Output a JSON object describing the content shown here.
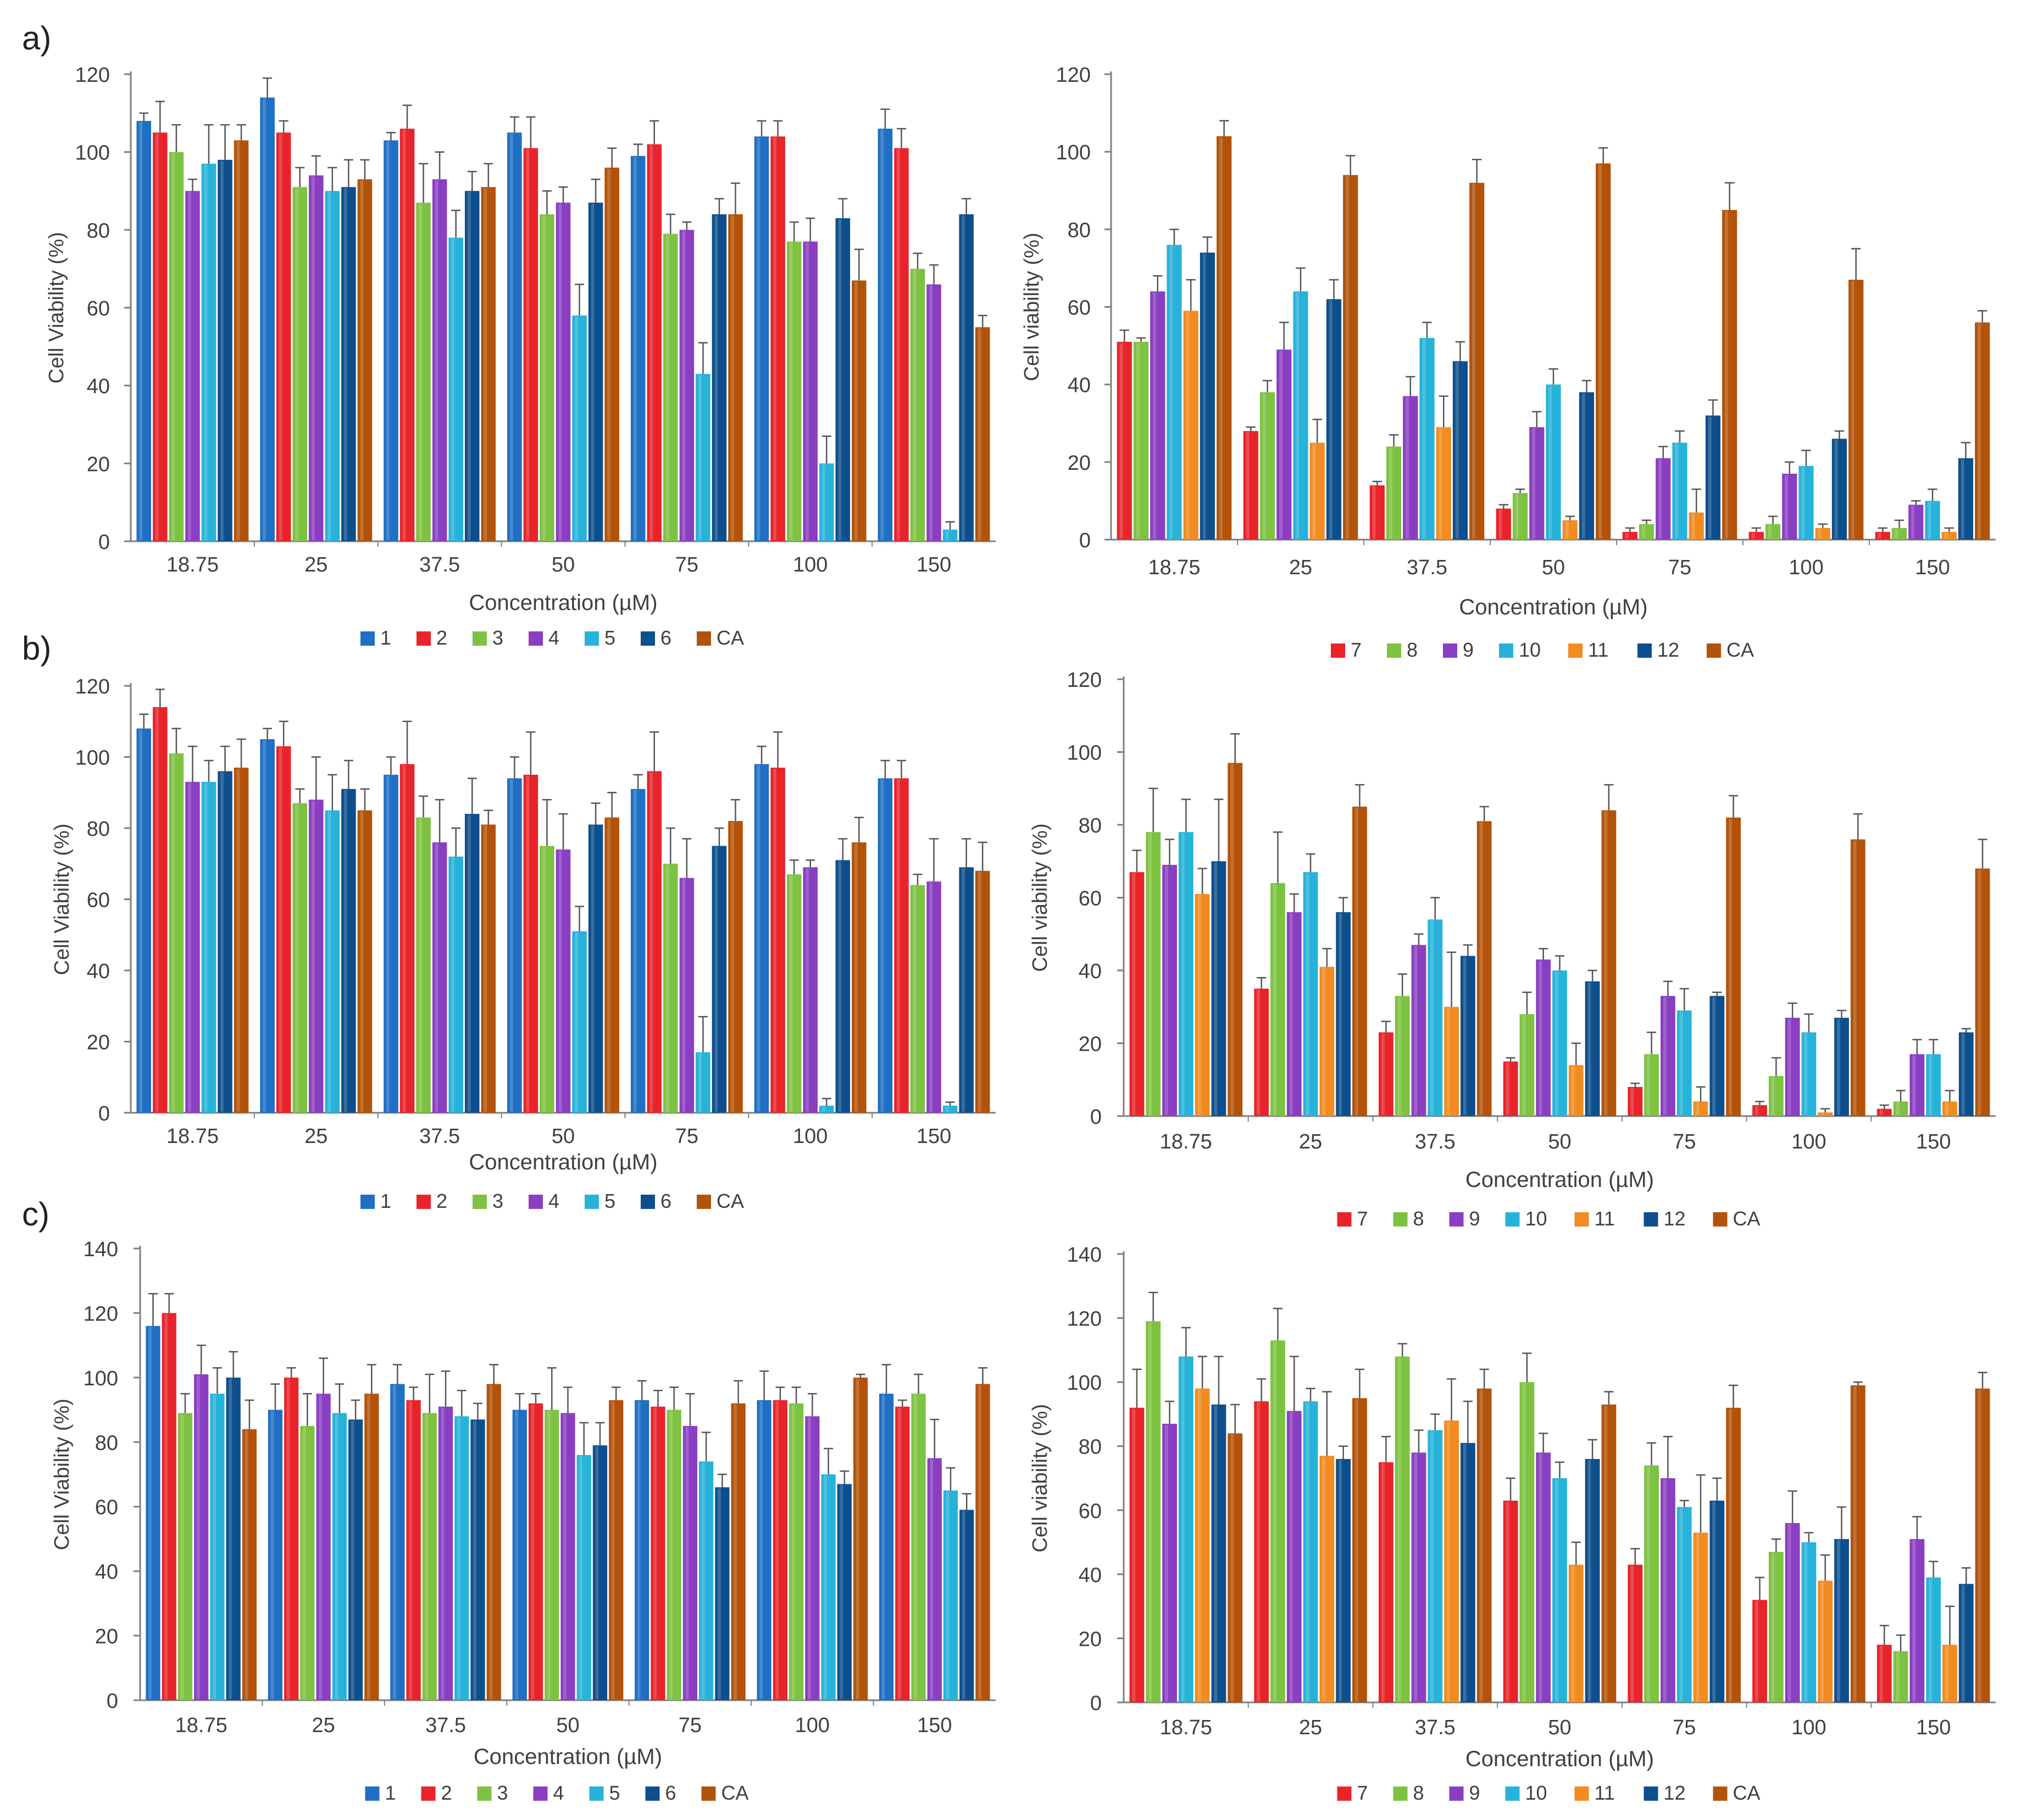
{
  "panel_labels": [
    "a)",
    "b)",
    "c)"
  ],
  "colors": {
    "1": "#1f6fc4",
    "2": "#e8242a",
    "3": "#7ec242",
    "4": "#8a3fc2",
    "5": "#27b3d9",
    "6": "#0d4f8c",
    "7": "#e8242a",
    "8": "#7ec242",
    "9": "#8a3fc2",
    "10": "#27b3d9",
    "11": "#f28b20",
    "12": "#0d4f8c",
    "CA": "#b35309",
    "axis": "#7f7f7f",
    "text": "#404040",
    "error": "#555555"
  },
  "chart_data": [
    {
      "type": "bar",
      "panel": "a)",
      "xlabel": "Concentration (µM)",
      "ylabel": "Cell Viability (%)",
      "ylim": [
        0,
        120
      ],
      "yticks": [
        0,
        20,
        40,
        60,
        80,
        100,
        120
      ],
      "categories": [
        "18.75",
        "25",
        "37.5",
        "50",
        "75",
        "100",
        "150"
      ],
      "series": [
        {
          "name": "1",
          "values": [
            108,
            114,
            103,
            105,
            99,
            104,
            106
          ],
          "errors": [
            2,
            5,
            2,
            4,
            3,
            4,
            5
          ]
        },
        {
          "name": "2",
          "values": [
            105,
            105,
            106,
            101,
            102,
            104,
            101
          ],
          "errors": [
            8,
            3,
            6,
            8,
            6,
            4,
            5
          ]
        },
        {
          "name": "3",
          "values": [
            100,
            91,
            87,
            84,
            79,
            77,
            70
          ],
          "errors": [
            7,
            5,
            10,
            6,
            5,
            5,
            4
          ]
        },
        {
          "name": "4",
          "values": [
            90,
            94,
            93,
            87,
            80,
            77,
            66
          ],
          "errors": [
            3,
            5,
            7,
            4,
            2,
            6,
            5
          ]
        },
        {
          "name": "5",
          "values": [
            97,
            90,
            78,
            58,
            43,
            20,
            3
          ],
          "errors": [
            10,
            6,
            7,
            8,
            8,
            7,
            2
          ]
        },
        {
          "name": "6",
          "values": [
            98,
            91,
            90,
            87,
            84,
            83,
            84
          ],
          "errors": [
            9,
            7,
            5,
            6,
            4,
            5,
            4
          ]
        },
        {
          "name": "CA",
          "values": [
            103,
            93,
            91,
            96,
            84,
            67,
            55
          ],
          "errors": [
            4,
            5,
            6,
            5,
            8,
            8,
            3
          ]
        }
      ]
    },
    {
      "type": "bar",
      "panel": "a)",
      "xlabel": "Concentration (µM)",
      "ylabel": "Cell viability (%)",
      "ylim": [
        0,
        120
      ],
      "yticks": [
        0,
        20,
        40,
        60,
        80,
        100,
        120
      ],
      "categories": [
        "18.75",
        "25",
        "37.5",
        "50",
        "75",
        "100",
        "150"
      ],
      "series": [
        {
          "name": "7",
          "values": [
            51,
            28,
            14,
            8,
            2,
            2,
            2
          ],
          "errors": [
            3,
            1,
            1,
            1,
            1,
            1,
            1
          ]
        },
        {
          "name": "8",
          "values": [
            51,
            38,
            24,
            12,
            4,
            4,
            3
          ],
          "errors": [
            1,
            3,
            3,
            1,
            1,
            2,
            2
          ]
        },
        {
          "name": "9",
          "values": [
            64,
            49,
            37,
            29,
            21,
            17,
            9
          ],
          "errors": [
            4,
            7,
            5,
            4,
            3,
            3,
            1
          ]
        },
        {
          "name": "10",
          "values": [
            76,
            64,
            52,
            40,
            25,
            19,
            10
          ],
          "errors": [
            4,
            6,
            4,
            4,
            3,
            4,
            3
          ]
        },
        {
          "name": "11",
          "values": [
            59,
            25,
            29,
            5,
            7,
            3,
            2
          ],
          "errors": [
            8,
            6,
            8,
            1,
            6,
            1,
            1
          ]
        },
        {
          "name": "12",
          "values": [
            74,
            62,
            46,
            38,
            32,
            26,
            21
          ],
          "errors": [
            4,
            5,
            5,
            3,
            4,
            2,
            4
          ]
        },
        {
          "name": "CA",
          "values": [
            104,
            94,
            92,
            97,
            85,
            67,
            56
          ],
          "errors": [
            4,
            5,
            6,
            4,
            7,
            8,
            3
          ]
        }
      ]
    },
    {
      "type": "bar",
      "panel": "b)",
      "xlabel": "Concentration (µM)",
      "ylabel": "Cell Viability (%)",
      "ylim": [
        0,
        120
      ],
      "yticks": [
        0,
        20,
        40,
        60,
        80,
        100,
        120
      ],
      "categories": [
        "18.75",
        "25",
        "37.5",
        "50",
        "75",
        "100",
        "150"
      ],
      "series": [
        {
          "name": "1",
          "values": [
            108,
            105,
            95,
            94,
            91,
            98,
            94
          ],
          "errors": [
            4,
            3,
            5,
            6,
            4,
            5,
            5
          ]
        },
        {
          "name": "2",
          "values": [
            114,
            103,
            98,
            95,
            96,
            97,
            94
          ],
          "errors": [
            5,
            7,
            12,
            12,
            11,
            10,
            5
          ]
        },
        {
          "name": "3",
          "values": [
            101,
            87,
            83,
            75,
            70,
            67,
            64
          ],
          "errors": [
            7,
            4,
            6,
            13,
            10,
            4,
            3
          ]
        },
        {
          "name": "4",
          "values": [
            93,
            88,
            76,
            74,
            66,
            69,
            65
          ],
          "errors": [
            10,
            12,
            12,
            10,
            11,
            2,
            12
          ]
        },
        {
          "name": "5",
          "values": [
            93,
            85,
            72,
            51,
            17,
            2,
            2
          ],
          "errors": [
            6,
            10,
            8,
            7,
            10,
            2,
            1
          ]
        },
        {
          "name": "6",
          "values": [
            96,
            91,
            84,
            81,
            75,
            71,
            69
          ],
          "errors": [
            7,
            8,
            10,
            6,
            5,
            6,
            8
          ]
        },
        {
          "name": "CA",
          "values": [
            97,
            85,
            81,
            83,
            82,
            76,
            68
          ],
          "errors": [
            8,
            6,
            4,
            7,
            6,
            7,
            8
          ]
        }
      ]
    },
    {
      "type": "bar",
      "panel": "b)",
      "xlabel": "Concentration (µM)",
      "ylabel": "Cell viability (%)",
      "ylim": [
        0,
        120
      ],
      "yticks": [
        0,
        20,
        40,
        60,
        80,
        100,
        120
      ],
      "categories": [
        "18.75",
        "25",
        "37.5",
        "50",
        "75",
        "100",
        "150"
      ],
      "series": [
        {
          "name": "7",
          "values": [
            67,
            35,
            23,
            15,
            8,
            3,
            2
          ],
          "errors": [
            6,
            3,
            3,
            1,
            1,
            1,
            1
          ]
        },
        {
          "name": "8",
          "values": [
            78,
            64,
            33,
            28,
            17,
            11,
            4
          ],
          "errors": [
            12,
            14,
            6,
            6,
            6,
            5,
            3
          ]
        },
        {
          "name": "9",
          "values": [
            69,
            56,
            47,
            43,
            33,
            27,
            17
          ],
          "errors": [
            7,
            5,
            3,
            3,
            4,
            4,
            4
          ]
        },
        {
          "name": "10",
          "values": [
            78,
            67,
            54,
            40,
            29,
            23,
            17
          ],
          "errors": [
            9,
            5,
            6,
            4,
            6,
            5,
            4
          ]
        },
        {
          "name": "11",
          "values": [
            61,
            41,
            30,
            14,
            4,
            1,
            4
          ],
          "errors": [
            7,
            5,
            15,
            6,
            4,
            1,
            3
          ]
        },
        {
          "name": "12",
          "values": [
            70,
            56,
            44,
            37,
            33,
            27,
            23
          ],
          "errors": [
            17,
            4,
            3,
            3,
            1,
            2,
            1
          ]
        },
        {
          "name": "CA",
          "values": [
            97,
            85,
            81,
            84,
            82,
            76,
            68
          ],
          "errors": [
            8,
            6,
            4,
            7,
            6,
            7,
            8
          ]
        }
      ]
    },
    {
      "type": "bar",
      "panel": "c)",
      "xlabel": "Concentration (µM)",
      "ylabel": "Cell Viability (%)",
      "ylim": [
        0,
        140
      ],
      "yticks": [
        0,
        20,
        40,
        60,
        80,
        100,
        120,
        140
      ],
      "categories": [
        "18.75",
        "25",
        "37.5",
        "50",
        "75",
        "100",
        "150"
      ],
      "series": [
        {
          "name": "1",
          "values": [
            116,
            90,
            98,
            90,
            93,
            93,
            95
          ],
          "errors": [
            10,
            8,
            6,
            5,
            6,
            9,
            9
          ]
        },
        {
          "name": "2",
          "values": [
            120,
            100,
            93,
            92,
            91,
            93,
            91
          ],
          "errors": [
            6,
            3,
            4,
            3,
            5,
            4,
            2
          ]
        },
        {
          "name": "3",
          "values": [
            89,
            85,
            89,
            90,
            90,
            92,
            95
          ],
          "errors": [
            6,
            10,
            12,
            13,
            7,
            5,
            6
          ]
        },
        {
          "name": "4",
          "values": [
            101,
            95,
            91,
            89,
            85,
            88,
            75
          ],
          "errors": [
            9,
            11,
            11,
            8,
            10,
            7,
            12
          ]
        },
        {
          "name": "5",
          "values": [
            95,
            89,
            88,
            76,
            74,
            70,
            65
          ],
          "errors": [
            8,
            9,
            8,
            10,
            9,
            8,
            7
          ]
        },
        {
          "name": "6",
          "values": [
            100,
            87,
            87,
            79,
            66,
            67,
            59
          ],
          "errors": [
            8,
            6,
            5,
            7,
            4,
            4,
            5
          ]
        },
        {
          "name": "CA",
          "values": [
            84,
            95,
            98,
            93,
            92,
            100,
            98
          ],
          "errors": [
            9,
            9,
            6,
            4,
            7,
            1,
            5
          ]
        }
      ]
    },
    {
      "type": "bar",
      "panel": "c)",
      "xlabel": "Concentration (µM)",
      "ylabel": "Cell viability (%)",
      "ylim": [
        0,
        140
      ],
      "yticks": [
        0,
        20,
        40,
        60,
        80,
        100,
        120,
        140
      ],
      "categories": [
        "18.75",
        "25",
        "37.5",
        "50",
        "75",
        "100",
        "150"
      ],
      "series": [
        {
          "name": "7",
          "values": [
            92,
            94,
            75,
            63,
            43,
            32,
            18
          ],
          "errors": [
            12,
            7,
            8,
            7,
            5,
            7,
            6
          ]
        },
        {
          "name": "8",
          "values": [
            119,
            113,
            108,
            100,
            74,
            47,
            16
          ],
          "errors": [
            9,
            10,
            4,
            9,
            7,
            4,
            5
          ]
        },
        {
          "name": "9",
          "values": [
            87,
            91,
            78,
            78,
            70,
            56,
            51
          ],
          "errors": [
            7,
            17,
            7,
            6,
            13,
            10,
            7
          ]
        },
        {
          "name": "10",
          "values": [
            108,
            94,
            85,
            70,
            61,
            50,
            39
          ],
          "errors": [
            9,
            4,
            5,
            5,
            2,
            3,
            5
          ]
        },
        {
          "name": "11",
          "values": [
            98,
            77,
            88,
            43,
            53,
            38,
            18
          ],
          "errors": [
            10,
            20,
            13,
            7,
            18,
            8,
            12
          ]
        },
        {
          "name": "12",
          "values": [
            93,
            76,
            81,
            76,
            63,
            51,
            37
          ],
          "errors": [
            15,
            4,
            13,
            6,
            7,
            10,
            5
          ]
        },
        {
          "name": "CA",
          "values": [
            84,
            95,
            98,
            93,
            92,
            99,
            98
          ],
          "errors": [
            9,
            9,
            6,
            4,
            7,
            1,
            5
          ]
        }
      ]
    }
  ]
}
